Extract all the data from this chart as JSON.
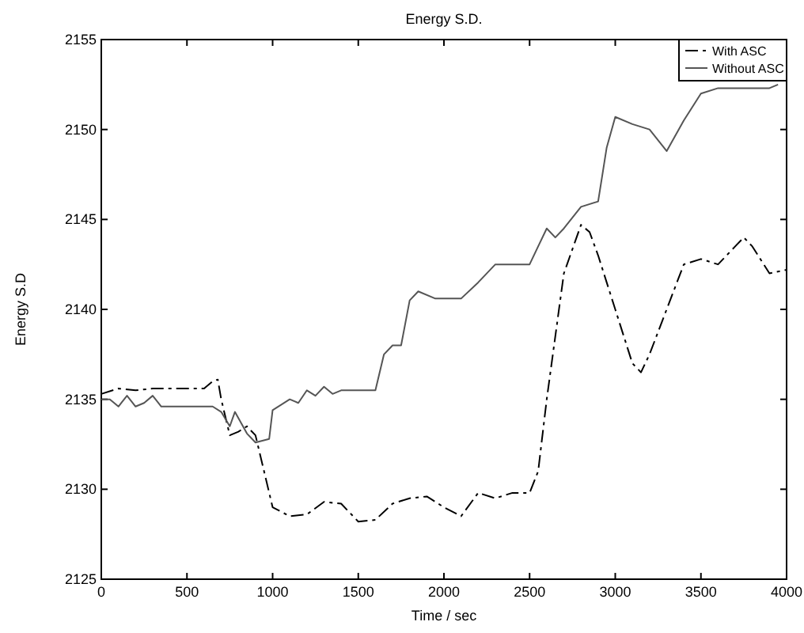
{
  "chart_data": {
    "type": "line",
    "title": "Energy S.D.",
    "xlabel": "Time / sec",
    "ylabel": "Energy S.D",
    "xlim": [
      0,
      4000
    ],
    "ylim": [
      2125,
      2155
    ],
    "xticks": [
      0,
      500,
      1000,
      1500,
      2000,
      2500,
      3000,
      3500,
      4000
    ],
    "yticks": [
      2125,
      2130,
      2135,
      2140,
      2145,
      2150,
      2155
    ],
    "legend": "top right",
    "grid": false,
    "series": [
      {
        "name": "With ASC",
        "color": "#000000",
        "line_style": "dashed",
        "x": [
          0,
          100,
          200,
          300,
          400,
          500,
          600,
          650,
          680,
          700,
          750,
          800,
          850,
          900,
          950,
          1000,
          1100,
          1200,
          1300,
          1400,
          1500,
          1600,
          1700,
          1800,
          1900,
          2000,
          2100,
          2200,
          2300,
          2400,
          2500,
          2550,
          2600,
          2700,
          2800,
          2850,
          2900,
          3000,
          3100,
          3150,
          3200,
          3300,
          3400,
          3500,
          3600,
          3700,
          3750,
          3800,
          3900,
          4000
        ],
        "values": [
          2135.3,
          2135.6,
          2135.5,
          2135.6,
          2135.6,
          2135.6,
          2135.6,
          2136,
          2136.1,
          2135,
          2133,
          2133.2,
          2133.5,
          2133,
          2131,
          2129,
          2128.5,
          2128.6,
          2129.3,
          2129.2,
          2128.2,
          2128.3,
          2129.2,
          2129.5,
          2129.6,
          2129,
          2128.5,
          2129.8,
          2129.5,
          2129.8,
          2129.8,
          2131,
          2135,
          2142,
          2144.7,
          2144.3,
          2143,
          2140,
          2137,
          2136.5,
          2137.5,
          2140,
          2142.5,
          2142.8,
          2142.5,
          2143.5,
          2144,
          2143.5,
          2142,
          2142.2
        ]
      },
      {
        "name": "Without ASC",
        "color": "#555555",
        "line_style": "solid",
        "x": [
          0,
          50,
          100,
          150,
          200,
          250,
          300,
          350,
          650,
          700,
          750,
          780,
          850,
          900,
          980,
          1000,
          1100,
          1150,
          1200,
          1250,
          1300,
          1350,
          1400,
          1600,
          1650,
          1700,
          1750,
          1800,
          1850,
          1950,
          2000,
          2100,
          2200,
          2300,
          2500,
          2550,
          2600,
          2650,
          2700,
          2800,
          2900,
          2950,
          3000,
          3100,
          3200,
          3300,
          3400,
          3500,
          3600,
          3850,
          3900,
          3950
        ],
        "values": [
          2135,
          2135,
          2134.6,
          2135.2,
          2134.6,
          2134.8,
          2135.2,
          2134.6,
          2134.6,
          2134.3,
          2133.5,
          2134.3,
          2133.1,
          2132.6,
          2132.8,
          2134.4,
          2135,
          2134.8,
          2135.5,
          2135.2,
          2135.7,
          2135.3,
          2135.5,
          2135.5,
          2137.5,
          2138,
          2138,
          2140.5,
          2141,
          2140.6,
          2140.6,
          2140.6,
          2141.5,
          2142.5,
          2142.5,
          2143.5,
          2144.5,
          2144,
          2144.5,
          2145.7,
          2146,
          2149,
          2150.7,
          2150.3,
          2150,
          2148.8,
          2150.5,
          2152,
          2152.3,
          2152.3,
          2152.3,
          2152.5
        ]
      }
    ]
  }
}
